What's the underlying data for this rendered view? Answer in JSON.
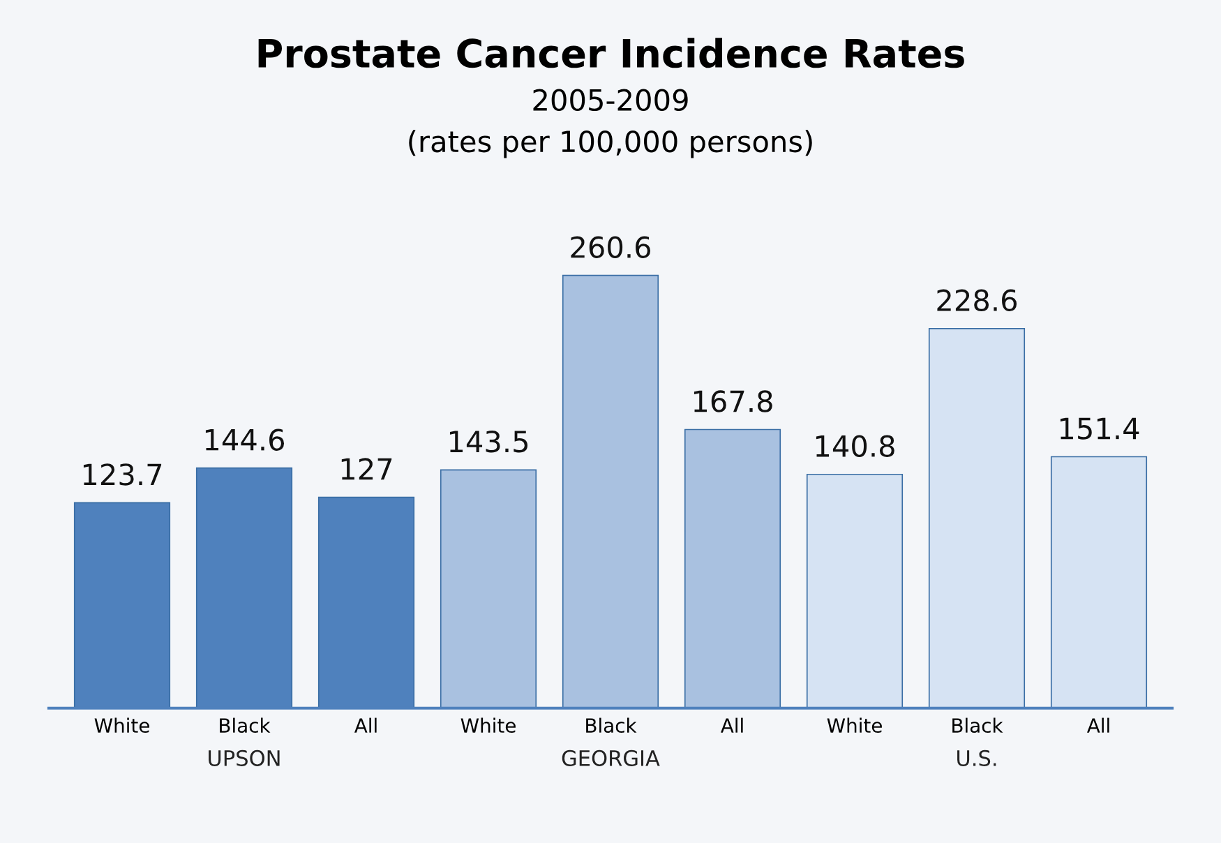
{
  "chart_data": {
    "type": "bar",
    "title": "Prostate Cancer Incidence Rates",
    "subtitle": "2005-2009\n(rates per 100,000 persons)",
    "categories": [
      "White",
      "Black",
      "All",
      "White",
      "Black",
      "All",
      "White",
      "Black",
      "All"
    ],
    "series": [
      {
        "name": "UPSON",
        "color": "#4f81bd",
        "values": [
          123.7,
          144.6,
          127,
          null,
          null,
          null,
          null,
          null,
          null
        ]
      },
      {
        "name": "GEORGIA",
        "color": "#a9c1e0",
        "values": [
          null,
          null,
          null,
          143.5,
          260.6,
          167.8,
          null,
          null,
          null
        ]
      },
      {
        "name": "U.S.",
        "color": "#d6e3f3",
        "values": [
          null,
          null,
          null,
          null,
          null,
          null,
          140.8,
          228.6,
          151.4
        ]
      }
    ],
    "data_labels": true,
    "legend": false,
    "grid": false
  }
}
